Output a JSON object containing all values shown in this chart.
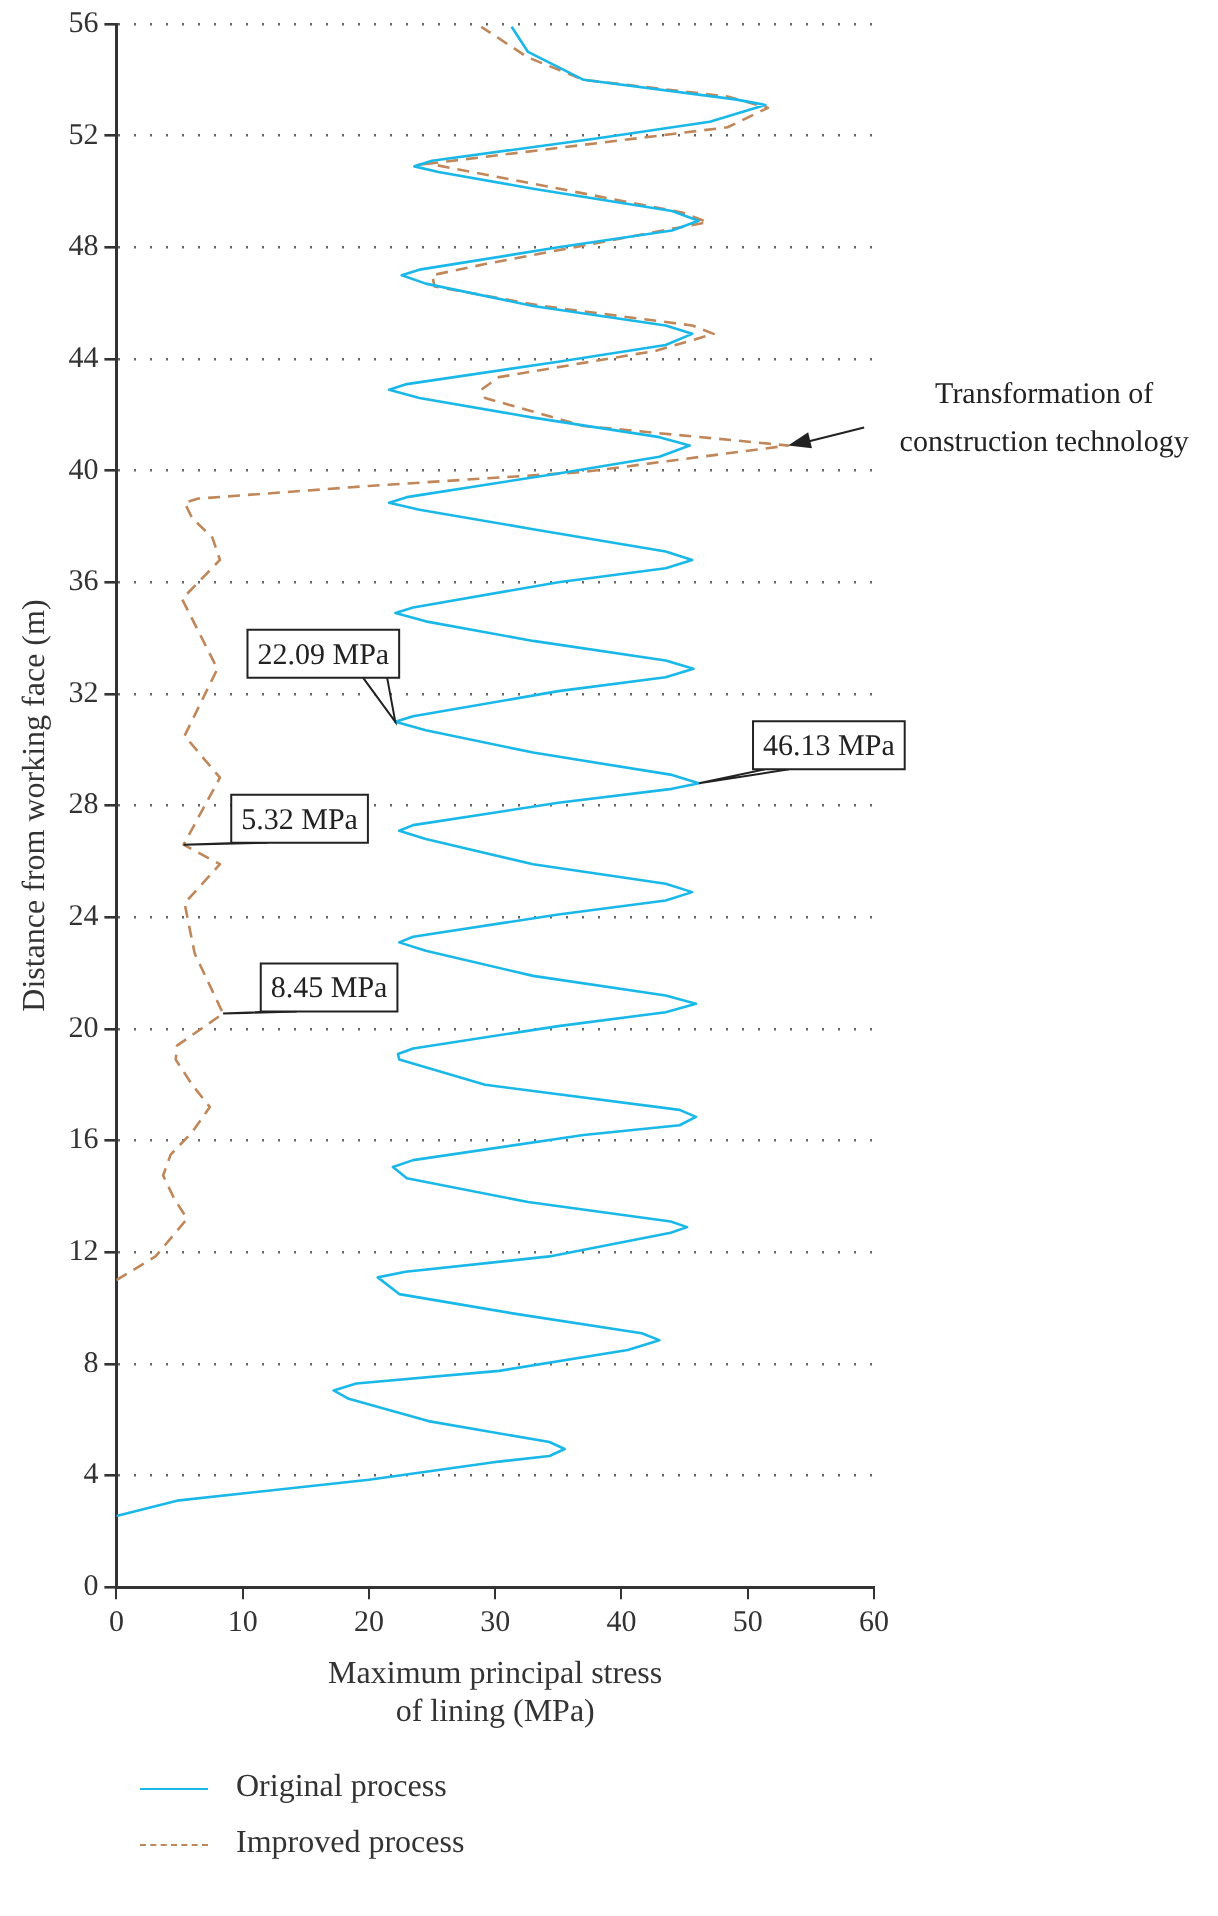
{
  "chart_data": {
    "type": "line",
    "xlabel": "Maximum principal stress\nof lining (MPa)",
    "ylabel": "Distance from working face (m)",
    "xlim": [
      0,
      60
    ],
    "xticks": [
      0,
      10,
      20,
      30,
      40,
      50,
      60
    ],
    "ylim": [
      0,
      56
    ],
    "yticks": [
      0,
      4,
      8,
      12,
      16,
      20,
      24,
      28,
      32,
      36,
      40,
      44,
      48,
      52,
      56
    ],
    "grid": "y",
    "legend": "bottom",
    "marker": "none",
    "series": [
      {
        "name": "Original process",
        "color": "#1ab8e8",
        "line_style": "solid",
        "x": [
          0,
          4.8,
          20,
          30.3,
          34.3,
          35.5,
          34.3,
          24.7,
          18.4,
          17.2,
          19,
          30.3,
          40.5,
          43,
          41.6,
          31.5,
          22.4,
          20.7,
          22.9,
          34.3,
          43.9,
          45.2,
          43.9,
          32.6,
          23,
          21.9,
          23.5,
          37,
          44.6,
          45.9,
          44.6,
          29.2,
          22.4,
          22.3,
          23.5,
          35,
          43.5,
          45.9,
          43.5,
          33,
          24.5,
          22.4,
          23.5,
          35,
          43.5,
          45.6,
          43.5,
          33,
          24.5,
          22.4,
          23.5,
          35,
          44,
          46.13,
          44,
          33,
          24.5,
          22.09,
          23.5,
          35,
          43.5,
          45.7,
          43.5,
          33,
          24.5,
          22.1,
          23.5,
          35,
          43.5,
          45.6,
          43.5,
          33,
          24,
          21.6,
          23,
          35,
          43,
          45.4,
          43,
          33,
          24,
          21.6,
          23,
          35,
          43.5,
          45.6,
          43.5,
          33,
          24.5,
          22.6,
          24,
          35,
          44,
          46.1,
          44,
          33,
          25.5,
          23.6,
          25,
          38,
          47,
          51.4,
          49,
          37,
          32.6,
          31.3
        ],
        "values": [
          2.55,
          3.1,
          3.85,
          4.5,
          4.7,
          4.95,
          5.2,
          5.95,
          6.75,
          7.05,
          7.3,
          7.75,
          8.5,
          8.85,
          9.1,
          9.8,
          10.5,
          11.1,
          11.3,
          11.85,
          12.7,
          12.9,
          13.1,
          13.8,
          14.65,
          15.05,
          15.3,
          16.2,
          16.55,
          16.85,
          17.1,
          18,
          18.9,
          19.1,
          19.3,
          20.1,
          20.6,
          20.9,
          21.2,
          21.9,
          22.8,
          23.1,
          23.3,
          24.1,
          24.6,
          24.9,
          25.2,
          25.9,
          26.8,
          27.1,
          27.3,
          28.1,
          28.6,
          28.8,
          29.1,
          29.9,
          30.7,
          31,
          31.2,
          32.1,
          32.6,
          32.9,
          33.2,
          33.9,
          34.6,
          34.9,
          35.1,
          36,
          36.5,
          36.8,
          37.1,
          37.9,
          38.6,
          38.85,
          39.05,
          39.9,
          40.5,
          40.9,
          41.2,
          41.9,
          42.6,
          42.9,
          43.1,
          43.9,
          44.5,
          44.9,
          45.2,
          45.9,
          46.7,
          47,
          47.2,
          48,
          48.6,
          48.95,
          49.3,
          50.1,
          50.7,
          50.9,
          51.1,
          51.9,
          52.5,
          53.1,
          53.3,
          54,
          55,
          55.9
        ]
      },
      {
        "name": "Improved process",
        "color": "#c0875a",
        "line_style": "dashed",
        "x": [
          0,
          3.1,
          5.6,
          4.6,
          3.7,
          4.3,
          6,
          7.4,
          6,
          4.7,
          4.8,
          8.45,
          6.2,
          5.4,
          8.2,
          5.32,
          8.2,
          5.4,
          8,
          5.2,
          8.2,
          7.6,
          6,
          5.4,
          6.5,
          20,
          37,
          53.2,
          37,
          29.2,
          28.9,
          30.3,
          42.8,
          47.3,
          45.6,
          33.7,
          25.2,
          25,
          29.2,
          46.8,
          44.8,
          24.7,
          23.9,
          48.4,
          51.6,
          48.4,
          37,
          32.6,
          28.9
        ],
        "values": [
          11,
          11.85,
          13.2,
          13.9,
          14.75,
          15.5,
          16.3,
          17.2,
          18,
          18.9,
          19.4,
          20.55,
          22.7,
          24.5,
          25.9,
          26.6,
          29,
          30.5,
          32.9,
          35.4,
          36.8,
          37.6,
          38.3,
          38.85,
          39,
          39.45,
          39.95,
          40.9,
          41.6,
          42.6,
          42.9,
          43.35,
          44.3,
          44.9,
          45.2,
          45.9,
          46.6,
          47,
          47.4,
          48.9,
          49.25,
          51,
          50.95,
          52.3,
          53,
          53.4,
          54,
          54.8,
          55.9
        ]
      }
    ],
    "annotations": [
      {
        "text": "22.09 MPa",
        "x": 22.09,
        "y": 31
      },
      {
        "text": "46.13 MPa",
        "x": 46.13,
        "y": 28.8
      },
      {
        "text": "5.32 MPa",
        "x": 5.32,
        "y": 26.6
      },
      {
        "text": "8.45 MPa",
        "x": 8.45,
        "y": 20.55
      },
      {
        "text": "Transformation of construction technology",
        "x": 53.2,
        "y": 40.9
      }
    ]
  }
}
